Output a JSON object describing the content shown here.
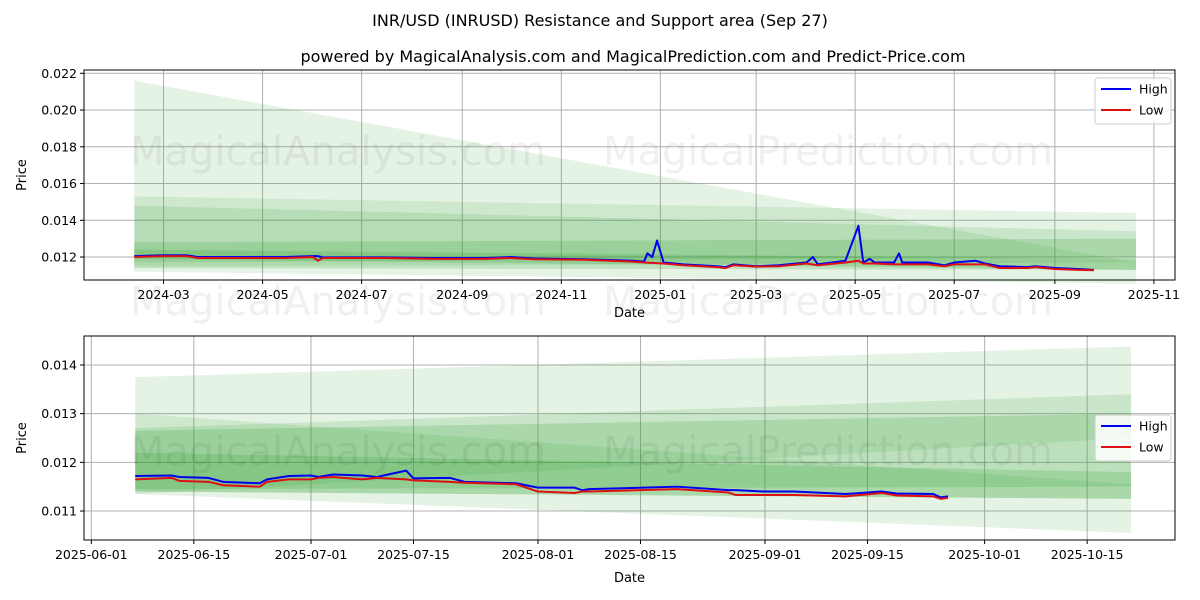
{
  "title": "INR/USD (INRUSD) Resistance and Support area (Sep 27)",
  "subtitle": "powered by MagicalAnalysis.com and MagicalPrediction.com and Predict-Price.com",
  "watermarks": [
    "MagicalAnalysis.com",
    "MagicalPrediction.com"
  ],
  "colors": {
    "high": "#0000ee",
    "low": "#dd1111",
    "band": "#2ca02c"
  },
  "chart_data": [
    {
      "type": "line",
      "title": "",
      "xlabel": "Date",
      "ylabel": "Price",
      "xlim": [
        "2024-01-12",
        "2025-11-14"
      ],
      "ylim": [
        0.01075,
        0.02218
      ],
      "yticks": [
        "0.012",
        "0.014",
        "0.016",
        "0.018",
        "0.020",
        "0.022"
      ],
      "xticks": [
        "2024-03",
        "2024-05",
        "2024-07",
        "2024-09",
        "2024-11",
        "2025-01",
        "2025-03",
        "2025-05",
        "2025-07",
        "2025-09",
        "2025-11"
      ],
      "legend": {
        "position": "top-right",
        "entries": [
          "High",
          "Low"
        ]
      },
      "bands": {
        "start": "2024-02-12",
        "end": "2025-10-21",
        "ranges": [
          {
            "start": [
              0.0112,
              0.0216
            ],
            "end": [
              0.01055,
              0.0117
            ],
            "opacity": 0.12
          },
          {
            "start": [
              0.0115,
              0.0153
            ],
            "end": [
              0.0117,
              0.0144
            ],
            "opacity": 0.12
          },
          {
            "start": [
              0.0117,
              0.0148
            ],
            "end": [
              0.012,
              0.0134
            ],
            "opacity": 0.15
          },
          {
            "start": [
              0.0114,
              0.0128
            ],
            "end": [
              0.0113,
              0.013
            ],
            "opacity": 0.2
          },
          {
            "start": [
              0.0119,
              0.0124
            ],
            "end": [
              0.0113,
              0.0119
            ],
            "opacity": 0.2
          }
        ]
      },
      "series": [
        {
          "name": "High",
          "points": [
            [
              "2024-02-12",
              0.01205
            ],
            [
              "2024-03-01",
              0.0121
            ],
            [
              "2024-03-15",
              0.0121
            ],
            [
              "2024-03-22",
              0.012
            ],
            [
              "2024-04-15",
              0.012
            ],
            [
              "2024-05-15",
              0.012
            ],
            [
              "2024-06-01",
              0.01205
            ],
            [
              "2024-06-04",
              0.01205
            ],
            [
              "2024-06-07",
              0.01198
            ],
            [
              "2024-07-15",
              0.01198
            ],
            [
              "2024-08-15",
              0.01195
            ],
            [
              "2024-09-15",
              0.01195
            ],
            [
              "2024-10-01",
              0.012
            ],
            [
              "2024-10-15",
              0.01192
            ],
            [
              "2024-11-15",
              0.01188
            ],
            [
              "2024-12-15",
              0.0118
            ],
            [
              "2024-12-22",
              0.01175
            ],
            [
              "2024-12-24",
              0.0122
            ],
            [
              "2024-12-27",
              0.012
            ],
            [
              "2024-12-30",
              0.0129
            ],
            [
              "2025-01-03",
              0.0117
            ],
            [
              "2025-01-15",
              0.0116
            ],
            [
              "2025-02-05",
              0.0115
            ],
            [
              "2025-02-10",
              0.01145
            ],
            [
              "2025-02-15",
              0.0116
            ],
            [
              "2025-03-01",
              0.0115
            ],
            [
              "2025-03-15",
              0.01155
            ],
            [
              "2025-04-01",
              0.0117
            ],
            [
              "2025-04-05",
              0.012
            ],
            [
              "2025-04-08",
              0.0116
            ],
            [
              "2025-04-25",
              0.0118
            ],
            [
              "2025-05-03",
              0.0137
            ],
            [
              "2025-05-06",
              0.0117
            ],
            [
              "2025-05-10",
              0.0119
            ],
            [
              "2025-05-13",
              0.0117
            ],
            [
              "2025-05-25",
              0.0117
            ],
            [
              "2025-05-28",
              0.0122
            ],
            [
              "2025-05-30",
              0.0117
            ],
            [
              "2025-06-15",
              0.0117
            ],
            [
              "2025-06-25",
              0.01155
            ],
            [
              "2025-07-01",
              0.0117
            ],
            [
              "2025-07-14",
              0.0118
            ],
            [
              "2025-07-20",
              0.01165
            ],
            [
              "2025-07-29",
              0.0115
            ],
            [
              "2025-08-15",
              0.01145
            ],
            [
              "2025-08-20",
              0.0115
            ],
            [
              "2025-09-01",
              0.0114
            ],
            [
              "2025-09-15",
              0.01135
            ],
            [
              "2025-09-25",
              0.0113
            ]
          ]
        },
        {
          "name": "Low",
          "points": [
            [
              "2024-02-12",
              0.012
            ],
            [
              "2024-03-01",
              0.01205
            ],
            [
              "2024-03-15",
              0.01205
            ],
            [
              "2024-03-22",
              0.01195
            ],
            [
              "2024-04-15",
              0.01195
            ],
            [
              "2024-05-15",
              0.01195
            ],
            [
              "2024-06-01",
              0.012
            ],
            [
              "2024-06-04",
              0.0118
            ],
            [
              "2024-06-07",
              0.01195
            ],
            [
              "2024-07-15",
              0.01195
            ],
            [
              "2024-08-15",
              0.0119
            ],
            [
              "2024-09-15",
              0.0119
            ],
            [
              "2024-10-01",
              0.01195
            ],
            [
              "2024-10-15",
              0.01188
            ],
            [
              "2024-11-15",
              0.01185
            ],
            [
              "2024-12-15",
              0.01175
            ],
            [
              "2024-12-22",
              0.0117
            ],
            [
              "2025-01-03",
              0.01165
            ],
            [
              "2025-01-15",
              0.01155
            ],
            [
              "2025-02-05",
              0.01145
            ],
            [
              "2025-02-10",
              0.0114
            ],
            [
              "2025-02-15",
              0.01155
            ],
            [
              "2025-03-01",
              0.01148
            ],
            [
              "2025-03-15",
              0.0115
            ],
            [
              "2025-04-01",
              0.01165
            ],
            [
              "2025-04-08",
              0.01155
            ],
            [
              "2025-04-25",
              0.0117
            ],
            [
              "2025-05-03",
              0.0118
            ],
            [
              "2025-05-06",
              0.01165
            ],
            [
              "2025-05-13",
              0.01165
            ],
            [
              "2025-05-25",
              0.0116
            ],
            [
              "2025-06-15",
              0.0116
            ],
            [
              "2025-06-25",
              0.0115
            ],
            [
              "2025-07-01",
              0.0116
            ],
            [
              "2025-07-20",
              0.0116
            ],
            [
              "2025-07-29",
              0.0114
            ],
            [
              "2025-08-15",
              0.0114
            ],
            [
              "2025-08-20",
              0.01145
            ],
            [
              "2025-09-01",
              0.01135
            ],
            [
              "2025-09-15",
              0.0113
            ],
            [
              "2025-09-25",
              0.01128
            ]
          ]
        }
      ]
    },
    {
      "type": "line",
      "title": "",
      "xlabel": "Date",
      "ylabel": "Price",
      "xlim": [
        "2025-05-31",
        "2025-10-27"
      ],
      "ylim": [
        0.010405,
        0.014595
      ],
      "yticks": [
        "0.011",
        "0.012",
        "0.013",
        "0.014"
      ],
      "xticks": [
        "2025-06-01",
        "2025-06-15",
        "2025-07-01",
        "2025-07-15",
        "2025-08-01",
        "2025-08-15",
        "2025-09-01",
        "2025-09-15",
        "2025-10-01",
        "2025-10-15"
      ],
      "legend": {
        "position": "center-right",
        "entries": [
          "High",
          "Low"
        ]
      },
      "bands": {
        "start": "2025-06-07",
        "end": "2025-10-21",
        "ranges": [
          {
            "start": [
              0.01135,
              0.01375
            ],
            "end": [
              0.0125,
              0.01438
            ],
            "opacity": 0.12
          },
          {
            "start": [
              0.01135,
              0.013
            ],
            "end": [
              0.01055,
              0.01155
            ],
            "opacity": 0.12
          },
          {
            "start": [
              0.0114,
              0.0127
            ],
            "end": [
              0.01125,
              0.0134
            ],
            "opacity": 0.15
          },
          {
            "start": [
              0.0114,
              0.01265
            ],
            "end": [
              0.01125,
              0.013
            ],
            "opacity": 0.2
          },
          {
            "start": [
              0.01145,
              0.0122
            ],
            "end": [
              0.0115,
              0.0118
            ],
            "opacity": 0.2
          }
        ]
      },
      "series": [
        {
          "name": "High",
          "points": [
            [
              "2025-06-07",
              0.01172
            ],
            [
              "2025-06-12",
              0.01173
            ],
            [
              "2025-06-13",
              0.0117
            ],
            [
              "2025-06-17",
              0.01168
            ],
            [
              "2025-06-19",
              0.0116
            ],
            [
              "2025-06-24",
              0.01157
            ],
            [
              "2025-06-25",
              0.01165
            ],
            [
              "2025-06-28",
              0.01172
            ],
            [
              "2025-07-01",
              0.01173
            ],
            [
              "2025-07-02",
              0.0117
            ],
            [
              "2025-07-04",
              0.01175
            ],
            [
              "2025-07-08",
              0.01173
            ],
            [
              "2025-07-10",
              0.0117
            ],
            [
              "2025-07-14",
              0.01183
            ],
            [
              "2025-07-15",
              0.01167
            ],
            [
              "2025-07-20",
              0.01168
            ],
            [
              "2025-07-22",
              0.0116
            ],
            [
              "2025-07-29",
              0.01157
            ],
            [
              "2025-08-01",
              0.01148
            ],
            [
              "2025-08-06",
              0.01148
            ],
            [
              "2025-08-07",
              0.01143
            ],
            [
              "2025-08-08",
              0.01145
            ],
            [
              "2025-08-20",
              0.0115
            ],
            [
              "2025-08-27",
              0.01143
            ],
            [
              "2025-08-28",
              0.01143
            ],
            [
              "2025-09-01",
              0.0114
            ],
            [
              "2025-09-05",
              0.0114
            ],
            [
              "2025-09-12",
              0.01135
            ],
            [
              "2025-09-17",
              0.0114
            ],
            [
              "2025-09-19",
              0.01136
            ],
            [
              "2025-09-24",
              0.01135
            ],
            [
              "2025-09-25",
              0.01128
            ],
            [
              "2025-09-26",
              0.0113
            ]
          ]
        },
        {
          "name": "Low",
          "points": [
            [
              "2025-06-07",
              0.01165
            ],
            [
              "2025-06-12",
              0.01168
            ],
            [
              "2025-06-13",
              0.01162
            ],
            [
              "2025-06-17",
              0.0116
            ],
            [
              "2025-06-19",
              0.01153
            ],
            [
              "2025-06-24",
              0.0115
            ],
            [
              "2025-06-25",
              0.0116
            ],
            [
              "2025-06-28",
              0.01165
            ],
            [
              "2025-07-01",
              0.01165
            ],
            [
              "2025-07-02",
              0.01168
            ],
            [
              "2025-07-04",
              0.0117
            ],
            [
              "2025-07-08",
              0.01165
            ],
            [
              "2025-07-10",
              0.01168
            ],
            [
              "2025-07-14",
              0.01165
            ],
            [
              "2025-07-15",
              0.01163
            ],
            [
              "2025-07-20",
              0.0116
            ],
            [
              "2025-07-22",
              0.01158
            ],
            [
              "2025-07-29",
              0.01155
            ],
            [
              "2025-08-01",
              0.0114
            ],
            [
              "2025-08-06",
              0.01137
            ],
            [
              "2025-08-07",
              0.0114
            ],
            [
              "2025-08-08",
              0.0114
            ],
            [
              "2025-08-20",
              0.01145
            ],
            [
              "2025-08-27",
              0.01138
            ],
            [
              "2025-08-28",
              0.01133
            ],
            [
              "2025-09-01",
              0.01133
            ],
            [
              "2025-09-05",
              0.01133
            ],
            [
              "2025-09-12",
              0.0113
            ],
            [
              "2025-09-17",
              0.01137
            ],
            [
              "2025-09-19",
              0.01132
            ],
            [
              "2025-09-24",
              0.0113
            ],
            [
              "2025-09-25",
              0.01125
            ],
            [
              "2025-09-26",
              0.01127
            ]
          ]
        }
      ]
    }
  ]
}
